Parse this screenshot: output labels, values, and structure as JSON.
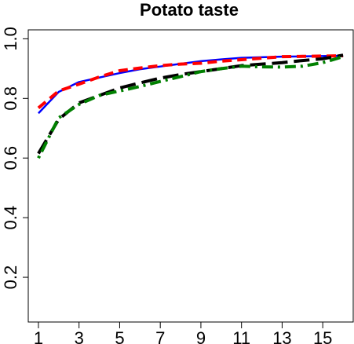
{
  "chart_data": {
    "type": "line",
    "title": "Potato taste",
    "xlabel": "",
    "ylabel": "",
    "xlim": [
      0.5,
      16.5
    ],
    "ylim": [
      0.05,
      1.03
    ],
    "x_ticks": [
      1,
      3,
      5,
      7,
      9,
      11,
      13,
      15
    ],
    "x_tick_labels": [
      "1",
      "3",
      "5",
      "7",
      "9",
      "11",
      "13",
      "15"
    ],
    "y_ticks": [
      0.2,
      0.4,
      0.6,
      0.8,
      1.0
    ],
    "y_tick_labels": [
      "0.2",
      "0.4",
      "0.6",
      "0.8",
      "1.0"
    ],
    "grid": false,
    "legend": "none",
    "x": [
      1,
      2,
      3,
      4,
      5,
      6,
      7,
      8,
      9,
      10,
      11,
      12,
      13,
      14,
      15,
      16
    ],
    "series": [
      {
        "color": "#0000ff",
        "dash": "solid",
        "values": [
          0.75,
          0.822,
          0.855,
          0.87,
          0.885,
          0.898,
          0.907,
          0.916,
          0.925,
          0.931,
          0.936,
          0.938,
          0.94,
          0.941,
          0.942,
          0.943
        ]
      },
      {
        "color": "#ff0000",
        "dash": "dashed",
        "values": [
          0.768,
          0.825,
          0.848,
          0.872,
          0.893,
          0.902,
          0.91,
          0.915,
          0.918,
          0.925,
          0.93,
          0.935,
          0.94,
          0.941,
          0.942,
          0.943
        ]
      },
      {
        "color": "#000000",
        "dash": "longdash",
        "values": [
          0.615,
          0.73,
          0.785,
          0.81,
          0.835,
          0.852,
          0.868,
          0.88,
          0.89,
          0.9,
          0.91,
          0.915,
          0.92,
          0.927,
          0.933,
          0.945
        ]
      },
      {
        "color": "#008000",
        "dash": "dotdash",
        "values": [
          0.6,
          0.735,
          0.78,
          0.81,
          0.825,
          0.84,
          0.857,
          0.873,
          0.89,
          0.9,
          0.908,
          0.906,
          0.905,
          0.908,
          0.92,
          0.94
        ]
      }
    ]
  }
}
